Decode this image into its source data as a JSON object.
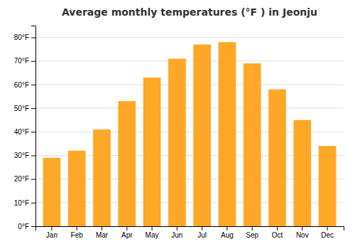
{
  "chart_data": {
    "type": "bar",
    "title": "Average monthly temperatures (°F ) in Jeonju",
    "categories": [
      "Jan",
      "Feb",
      "Mar",
      "Apr",
      "May",
      "Jun",
      "Jul",
      "Aug",
      "Sep",
      "Oct",
      "Nov",
      "Dec"
    ],
    "values": [
      29,
      32,
      41,
      53,
      63,
      71,
      77,
      78,
      69,
      58,
      45,
      34
    ],
    "color": "#FFA726",
    "ylim": [
      0,
      85
    ],
    "yticks": [
      {
        "value": 0,
        "label": "0°F"
      },
      {
        "value": 10,
        "label": "10°F"
      },
      {
        "value": 20,
        "label": "20°F"
      },
      {
        "value": 30,
        "label": "30°F"
      },
      {
        "value": 40,
        "label": "40°F"
      },
      {
        "value": 50,
        "label": "50°F"
      },
      {
        "value": 60,
        "label": "60°F"
      },
      {
        "value": 70,
        "label": "70°F"
      },
      {
        "value": 80,
        "label": "80°F"
      }
    ],
    "grid": true
  }
}
